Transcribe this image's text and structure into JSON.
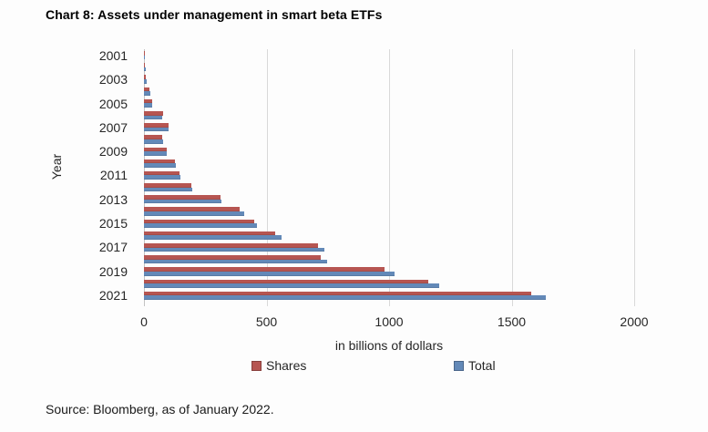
{
  "chart_data": {
    "type": "bar",
    "orientation": "horizontal",
    "title": "Chart 8: Assets under management in smart beta ETFs",
    "xlabel": "in billions of dollars",
    "ylabel": "Year",
    "xlim": [
      0,
      2000
    ],
    "xticks": [
      0,
      500,
      1000,
      1500,
      2000
    ],
    "grid": true,
    "legend_position": "bottom",
    "categories": [
      2001,
      2002,
      2003,
      2004,
      2005,
      2006,
      2007,
      2008,
      2009,
      2010,
      2011,
      2012,
      2013,
      2014,
      2015,
      2016,
      2017,
      2018,
      2019,
      2020,
      2021
    ],
    "labeled_categories": [
      2001,
      2003,
      2005,
      2007,
      2009,
      2011,
      2013,
      2015,
      2017,
      2019,
      2021
    ],
    "series": [
      {
        "name": "Shares",
        "color": "#b65551",
        "values": [
          1,
          5,
          9,
          24,
          32,
          77,
          101,
          75,
          92,
          128,
          145,
          193,
          313,
          392,
          450,
          537,
          709,
          721,
          982,
          1160,
          1580
        ]
      },
      {
        "name": "Total",
        "color": "#6389b8",
        "values": [
          1,
          6,
          10,
          26,
          34,
          76,
          100,
          77,
          93,
          131,
          149,
          196,
          317,
          410,
          462,
          562,
          737,
          747,
          1021,
          1203,
          1640
        ]
      }
    ]
  },
  "source": "Source: Bloomberg, as of January 2022.",
  "colors": {
    "shares": "#b65551",
    "total": "#6389b8",
    "gridline": "#d9d9d9",
    "axis_line": "#c3c3c3",
    "text": "#262626"
  }
}
